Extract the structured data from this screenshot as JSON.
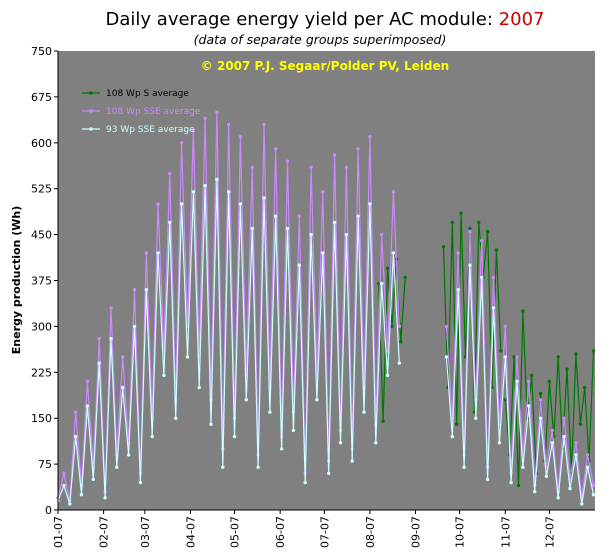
{
  "header": {
    "title_prefix": "Daily average energy yield per AC module: ",
    "title_year": "2007",
    "subtitle": "(data of separate groups superimposed)"
  },
  "colors": {
    "plot_background": "#808080",
    "s_group": "#007700",
    "sse_108": "#cc88ff",
    "sse_93": "#ccffff",
    "copyright": "#ffff00",
    "title_year": "#cc0000"
  },
  "chart_data": {
    "type": "line",
    "annotation": "© 2007 P.J. Segaar/Polder PV, Leiden",
    "xlabel": "",
    "ylabel": "Energy production (Wh)",
    "ylim": [
      0,
      750
    ],
    "yticks": [
      0,
      75,
      150,
      225,
      300,
      375,
      450,
      525,
      600,
      675,
      750
    ],
    "xlim": [
      "2007-01-01",
      "2007-12-31"
    ],
    "xticks": [
      "01-07",
      "02-07",
      "03-07",
      "04-07",
      "05-07",
      "06-07",
      "07-07",
      "08-07",
      "09-07",
      "10-07",
      "11-07",
      "12-07"
    ],
    "xtick_dates": [
      "2007-01-01",
      "2007-02-01",
      "2007-03-01",
      "2007-04-01",
      "2007-05-01",
      "2007-06-01",
      "2007-07-01",
      "2007-08-01",
      "2007-09-01",
      "2007-10-01",
      "2007-11-01",
      "2007-12-01"
    ],
    "legend_position": "top-left",
    "grid": false,
    "series": [
      {
        "name": "108 Wp S average",
        "segments": [
          {
            "x": [
              "2007-08-07",
              "2007-08-10",
              "2007-08-13",
              "2007-08-16",
              "2007-08-19",
              "2007-08-22",
              "2007-08-25"
            ],
            "values": [
              370,
              145,
              395,
              300,
              410,
              275,
              380
            ]
          },
          {
            "x": [
              "2007-09-20",
              "2007-09-23",
              "2007-09-26",
              "2007-09-29",
              "2007-10-02",
              "2007-10-05",
              "2007-10-08",
              "2007-10-11",
              "2007-10-14",
              "2007-10-17",
              "2007-10-20",
              "2007-10-23",
              "2007-10-26",
              "2007-10-29"
            ],
            "values": [
              430,
              200,
              470,
              140,
              485,
              250,
              460,
              160,
              470,
              380,
              455,
              200,
              425,
              260
            ]
          },
          {
            "x": [
              "2007-11-01",
              "2007-11-04",
              "2007-11-07",
              "2007-11-10",
              "2007-11-13",
              "2007-11-16",
              "2007-11-19",
              "2007-11-22",
              "2007-11-25",
              "2007-11-28",
              "2007-12-01",
              "2007-12-04",
              "2007-12-07",
              "2007-12-10",
              "2007-12-13",
              "2007-12-16",
              "2007-12-19",
              "2007-12-22",
              "2007-12-25",
              "2007-12-28",
              "2007-12-31"
            ],
            "values": [
              180,
              90,
              250,
              40,
              325,
              150,
              220,
              60,
              190,
              80,
              210,
              120,
              250,
              100,
              230,
              60,
              255,
              140,
              200,
              80,
              260
            ]
          }
        ]
      },
      {
        "name": "108 Wp SSE average",
        "segments": [
          {
            "x": [
              "2007-01-01",
              "2007-01-05",
              "2007-01-09",
              "2007-01-13",
              "2007-01-17",
              "2007-01-21",
              "2007-01-25",
              "2007-01-29",
              "2007-02-02",
              "2007-02-06",
              "2007-02-10",
              "2007-02-14",
              "2007-02-18",
              "2007-02-22",
              "2007-02-26",
              "2007-03-02",
              "2007-03-06",
              "2007-03-10",
              "2007-03-14",
              "2007-03-18",
              "2007-03-22",
              "2007-03-26",
              "2007-03-30",
              "2007-04-03",
              "2007-04-07",
              "2007-04-11",
              "2007-04-15",
              "2007-04-19",
              "2007-04-23",
              "2007-04-27",
              "2007-05-01",
              "2007-05-05",
              "2007-05-09",
              "2007-05-13",
              "2007-05-17",
              "2007-05-21",
              "2007-05-25",
              "2007-05-29",
              "2007-06-02",
              "2007-06-06",
              "2007-06-10",
              "2007-06-14",
              "2007-06-18",
              "2007-06-22",
              "2007-06-26",
              "2007-06-30",
              "2007-07-04",
              "2007-07-08",
              "2007-07-12",
              "2007-07-16",
              "2007-07-20",
              "2007-07-24",
              "2007-07-28",
              "2007-08-01",
              "2007-08-05",
              "2007-08-09",
              "2007-08-13",
              "2007-08-17",
              "2007-08-21"
            ],
            "values": [
              20,
              60,
              15,
              160,
              40,
              210,
              70,
              280,
              30,
              330,
              90,
              250,
              110,
              360,
              60,
              420,
              150,
              500,
              260,
              550,
              180,
              600,
              300,
              620,
              250,
              640,
              180,
              650,
              100,
              630,
              150,
              610,
              220,
              560,
              90,
              630,
              200,
              590,
              120,
              570,
              160,
              480,
              60,
              560,
              220,
              520,
              80,
              580,
              130,
              560,
              100,
              590,
              200,
              610,
              140,
              450,
              260,
              520,
              300
            ]
          },
          {
            "x": [
              "2007-09-22",
              "2007-09-26",
              "2007-09-30",
              "2007-10-04",
              "2007-10-08",
              "2007-10-12",
              "2007-10-16",
              "2007-10-20",
              "2007-10-24",
              "2007-10-28",
              "2007-11-01",
              "2007-11-05",
              "2007-11-09",
              "2007-11-13",
              "2007-11-17",
              "2007-11-21",
              "2007-11-25",
              "2007-11-29",
              "2007-12-03",
              "2007-12-07",
              "2007-12-11",
              "2007-12-15",
              "2007-12-19",
              "2007-12-23",
              "2007-12-27",
              "2007-12-31"
            ],
            "values": [
              300,
              150,
              420,
              90,
              455,
              180,
              440,
              70,
              380,
              140,
              300,
              60,
              250,
              90,
              210,
              40,
              180,
              70,
              130,
              30,
              150,
              50,
              110,
              20,
              90,
              40
            ]
          }
        ]
      },
      {
        "name": "93 Wp SSE average",
        "segments": [
          {
            "x": [
              "2007-01-01",
              "2007-01-05",
              "2007-01-09",
              "2007-01-13",
              "2007-01-17",
              "2007-01-21",
              "2007-01-25",
              "2007-01-29",
              "2007-02-02",
              "2007-02-06",
              "2007-02-10",
              "2007-02-14",
              "2007-02-18",
              "2007-02-22",
              "2007-02-26",
              "2007-03-02",
              "2007-03-06",
              "2007-03-10",
              "2007-03-14",
              "2007-03-18",
              "2007-03-22",
              "2007-03-26",
              "2007-03-30",
              "2007-04-03",
              "2007-04-07",
              "2007-04-11",
              "2007-04-15",
              "2007-04-19",
              "2007-04-23",
              "2007-04-27",
              "2007-05-01",
              "2007-05-05",
              "2007-05-09",
              "2007-05-13",
              "2007-05-17",
              "2007-05-21",
              "2007-05-25",
              "2007-05-29",
              "2007-06-02",
              "2007-06-06",
              "2007-06-10",
              "2007-06-14",
              "2007-06-18",
              "2007-06-22",
              "2007-06-26",
              "2007-06-30",
              "2007-07-04",
              "2007-07-08",
              "2007-07-12",
              "2007-07-16",
              "2007-07-20",
              "2007-07-24",
              "2007-07-28",
              "2007-08-01",
              "2007-08-05",
              "2007-08-09",
              "2007-08-13",
              "2007-08-17",
              "2007-08-21"
            ],
            "values": [
              15,
              40,
              10,
              120,
              25,
              170,
              50,
              240,
              20,
              280,
              70,
              200,
              90,
              300,
              45,
              360,
              120,
              420,
              220,
              470,
              150,
              500,
              250,
              520,
              200,
              530,
              140,
              540,
              70,
              520,
              120,
              500,
              180,
              460,
              70,
              510,
              160,
              480,
              100,
              460,
              130,
              400,
              45,
              450,
              180,
              420,
              60,
              470,
              110,
              450,
              80,
              480,
              160,
              500,
              110,
              370,
              220,
              420,
              240
            ]
          },
          {
            "x": [
              "2007-09-22",
              "2007-09-26",
              "2007-09-30",
              "2007-10-04",
              "2007-10-08",
              "2007-10-12",
              "2007-10-16",
              "2007-10-20",
              "2007-10-24",
              "2007-10-28",
              "2007-11-01",
              "2007-11-05",
              "2007-11-09",
              "2007-11-13",
              "2007-11-17",
              "2007-11-21",
              "2007-11-25",
              "2007-11-29",
              "2007-12-03",
              "2007-12-07",
              "2007-12-11",
              "2007-12-15",
              "2007-12-19",
              "2007-12-23",
              "2007-12-27",
              "2007-12-31"
            ],
            "values": [
              250,
              120,
              360,
              70,
              400,
              150,
              380,
              50,
              330,
              110,
              250,
              45,
              210,
              70,
              170,
              30,
              150,
              55,
              110,
              20,
              120,
              35,
              90,
              10,
              70,
              25
            ]
          }
        ]
      }
    ]
  }
}
